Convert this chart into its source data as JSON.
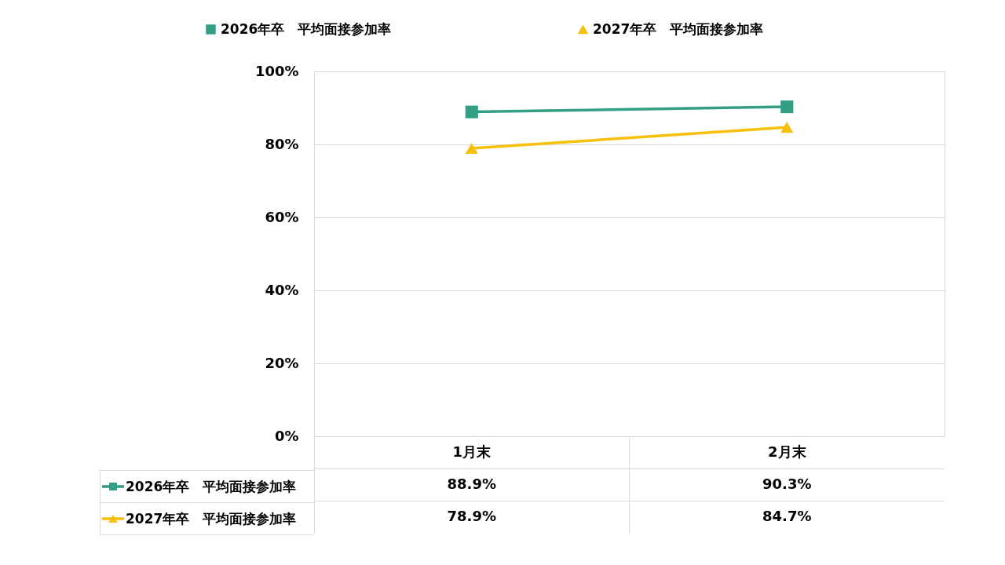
{
  "chart_data": {
    "type": "line",
    "categories": [
      "1月末",
      "2月末"
    ],
    "series": [
      {
        "name": "2026年卒　平均面接参加率",
        "color": "#329e84",
        "marker": "square",
        "values": [
          88.9,
          90.3
        ],
        "value_labels": [
          "88.9%",
          "90.3%"
        ]
      },
      {
        "name": "2027年卒　平均面接参加率",
        "color": "#f8bf0b",
        "marker": "triangle",
        "values": [
          78.9,
          84.7
        ],
        "value_labels": [
          "78.9%",
          "84.7%"
        ]
      }
    ],
    "ylim": [
      0,
      100
    ],
    "yticks": [
      {
        "value": 0,
        "label": "0%"
      },
      {
        "value": 20,
        "label": "20%"
      },
      {
        "value": 40,
        "label": "40%"
      },
      {
        "value": 60,
        "label": "60%"
      },
      {
        "value": 80,
        "label": "80%"
      },
      {
        "value": 100,
        "label": "100%"
      }
    ],
    "grid": "y",
    "legend": "top"
  }
}
